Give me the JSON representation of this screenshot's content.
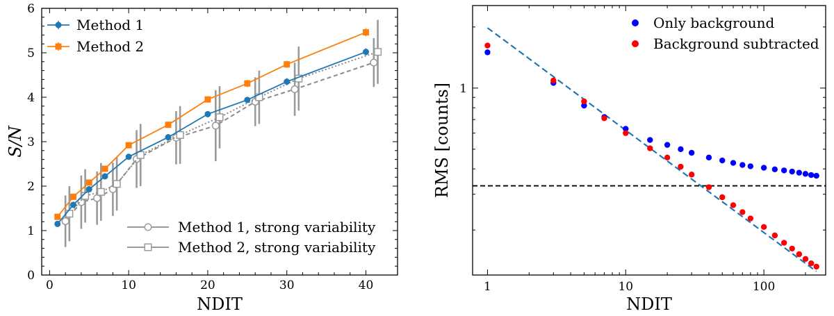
{
  "colors": {
    "method1": "#1f77b4",
    "method2": "#ff7f0e",
    "strong": "#8c8c8c",
    "only_background": "#0000ff",
    "background_subtracted": "#ff0000",
    "fit_line": "#1f77b4",
    "level_line": "#000000"
  },
  "chart_data": [
    {
      "type": "line",
      "xlabel": "NDIT",
      "ylabel": "S/N",
      "xlim": [
        -1,
        44
      ],
      "ylim": [
        0,
        6
      ],
      "xticks": [
        0,
        10,
        20,
        30,
        40
      ],
      "yticks": [
        0,
        1,
        2,
        3,
        4,
        5,
        6
      ],
      "legend_placement_top": "upper-left",
      "legend_placement_bottom": "lower-right",
      "series": [
        {
          "name": "Method 1",
          "x": [
            1,
            3,
            5,
            7,
            10,
            15,
            20,
            25,
            30,
            40
          ],
          "y": [
            1.15,
            1.58,
            1.93,
            2.22,
            2.66,
            3.1,
            3.62,
            3.94,
            4.35,
            5.02
          ],
          "yerr": [
            0.04,
            0.04,
            0.05,
            0.05,
            0.06,
            0.07,
            0.07,
            0.07,
            0.08,
            0.08
          ],
          "marker": "circle",
          "line": "solid"
        },
        {
          "name": "Method 2",
          "x": [
            1,
            3,
            5,
            7,
            10,
            15,
            20,
            25,
            30,
            40
          ],
          "y": [
            1.31,
            1.76,
            2.08,
            2.39,
            2.92,
            3.38,
            3.95,
            4.31,
            4.74,
            5.46
          ],
          "yerr": [
            0.04,
            0.04,
            0.05,
            0.05,
            0.06,
            0.07,
            0.07,
            0.08,
            0.08,
            0.09
          ],
          "marker": "square",
          "line": "solid"
        },
        {
          "name": "Method 1, strong variability",
          "x": [
            2,
            4,
            6,
            8,
            11,
            16,
            21,
            26,
            31,
            41
          ],
          "y": [
            1.21,
            1.64,
            1.73,
            1.93,
            2.61,
            3.09,
            3.36,
            3.9,
            4.18,
            4.78
          ],
          "yerr": [
            0.58,
            0.6,
            0.6,
            0.6,
            0.65,
            0.6,
            0.8,
            0.55,
            0.6,
            0.55
          ],
          "marker": "open-circle",
          "line": "dashed"
        },
        {
          "name": "Method 2, strong variability",
          "x": [
            2.5,
            4.5,
            6.5,
            8.5,
            11.5,
            16.5,
            21.5,
            26.5,
            31.5,
            41.5
          ],
          "y": [
            1.38,
            1.78,
            1.87,
            2.05,
            2.7,
            3.15,
            3.55,
            4.0,
            4.42,
            5.02
          ],
          "yerr": [
            0.62,
            0.6,
            0.65,
            0.6,
            0.7,
            0.65,
            0.7,
            0.6,
            0.72,
            0.72
          ],
          "marker": "open-square",
          "line": "dotted"
        }
      ]
    },
    {
      "type": "scatter",
      "xlabel": "NDIT",
      "ylabel": "RMS [counts]",
      "xscale": "log",
      "yscale": "log",
      "xlim": [
        0.78,
        280
      ],
      "ylim": [
        0.12,
        2.55
      ],
      "xticks": [
        1,
        10,
        100
      ],
      "xtick_labels": [
        "1",
        "10",
        "100"
      ],
      "yticks": [
        1
      ],
      "ytick_labels": [
        "1"
      ],
      "legend_placement": "upper-right",
      "fit_line": {
        "x": [
          1,
          240
        ],
        "y": [
          1.98,
          0.125
        ]
      },
      "horizontal_line_y": 0.33,
      "series": [
        {
          "name": "Only background",
          "x": [
            1,
            3,
            5,
            7,
            10,
            15,
            20,
            25,
            30,
            40,
            50,
            60,
            70,
            80,
            100,
            120,
            140,
            160,
            180,
            200,
            220,
            240
          ],
          "y": [
            1.5,
            1.06,
            0.82,
            0.72,
            0.63,
            0.555,
            0.525,
            0.5,
            0.48,
            0.455,
            0.44,
            0.428,
            0.418,
            0.412,
            0.405,
            0.398,
            0.393,
            0.388,
            0.383,
            0.378,
            0.373,
            0.37
          ],
          "marker": "filled-circle"
        },
        {
          "name": "Background subtracted",
          "x": [
            1,
            3,
            5,
            7,
            10,
            15,
            20,
            25,
            30,
            40,
            50,
            60,
            70,
            80,
            100,
            120,
            140,
            160,
            180,
            200,
            220,
            240
          ],
          "y": [
            1.62,
            1.09,
            0.86,
            0.71,
            0.6,
            0.505,
            0.455,
            0.41,
            0.375,
            0.325,
            0.29,
            0.265,
            0.245,
            0.228,
            0.207,
            0.188,
            0.173,
            0.162,
            0.152,
            0.144,
            0.137,
            0.132
          ],
          "marker": "filled-circle"
        }
      ]
    }
  ]
}
